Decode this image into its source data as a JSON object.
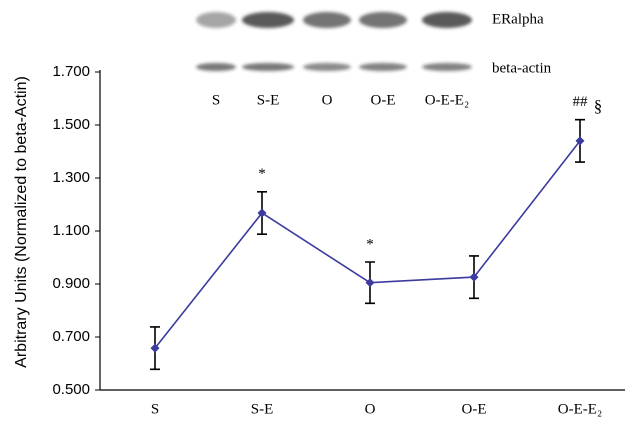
{
  "chart_data": {
    "type": "line",
    "y_label": "Arbitrary Units (Normalized to beta-Actin)",
    "categories": [
      "S",
      "S-E",
      "O",
      "O-E",
      "O-E-E₂"
    ],
    "series": [
      {
        "color": "#3b3b9e",
        "values": [
          0.658,
          1.168,
          0.905,
          0.926,
          1.44
        ],
        "errors": [
          0.08,
          0.08,
          0.078,
          0.08,
          0.08
        ]
      }
    ],
    "ylim": [
      0.5,
      1.7
    ],
    "yticks": [
      {
        "value": 0.5,
        "label": "0.500"
      },
      {
        "value": 0.7,
        "label": "0.700"
      },
      {
        "value": 0.9,
        "label": "0.900"
      },
      {
        "value": 1.1,
        "label": "1.100"
      },
      {
        "value": 1.3,
        "label": "1.300"
      },
      {
        "value": 1.5,
        "label": "1.500"
      },
      {
        "value": 1.7,
        "label": "1.700"
      }
    ],
    "grid": false,
    "annotations": [
      {
        "point": 1,
        "text": "*"
      },
      {
        "point": 2,
        "text": "*"
      },
      {
        "point": 4,
        "text": "##"
      },
      {
        "point": 4,
        "text": "§"
      }
    ]
  },
  "blot": {
    "rows": [
      "ERalpha",
      "beta-actin"
    ],
    "lanes": [
      "S",
      "S-E",
      "O",
      "O-E",
      "O-E-E₂"
    ]
  }
}
